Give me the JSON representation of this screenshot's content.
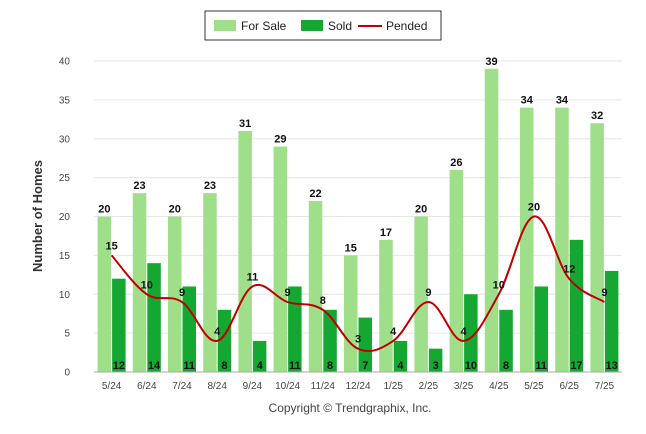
{
  "chart_data": {
    "type": "bar",
    "categories": [
      "5/24",
      "6/24",
      "7/24",
      "8/24",
      "9/24",
      "10/24",
      "11/24",
      "12/24",
      "1/25",
      "2/25",
      "3/25",
      "4/25",
      "5/25",
      "6/25",
      "7/25"
    ],
    "series": [
      {
        "name": "For Sale",
        "type": "bar",
        "color": "#9fdf8a",
        "values": [
          20,
          23,
          20,
          23,
          31,
          29,
          22,
          15,
          17,
          20,
          26,
          39,
          34,
          34,
          32
        ]
      },
      {
        "name": "Sold",
        "type": "bar",
        "color": "#14a832",
        "values": [
          12,
          14,
          11,
          8,
          4,
          11,
          8,
          7,
          4,
          3,
          10,
          8,
          11,
          17,
          13
        ]
      },
      {
        "name": "Pended",
        "type": "line",
        "color": "#c00000",
        "values": [
          15,
          10,
          9,
          4,
          11,
          9,
          8,
          3,
          4,
          9,
          4,
          10,
          20,
          12,
          9
        ]
      }
    ],
    "ylabel": "Number of Homes",
    "xlabel": "",
    "ylim": [
      0,
      40
    ],
    "yticks": [
      0,
      5,
      10,
      15,
      20,
      25,
      30,
      35,
      40
    ],
    "grid": true,
    "legend_position": "top-center",
    "credit": "Copyright © Trendgraphix, Inc."
  }
}
